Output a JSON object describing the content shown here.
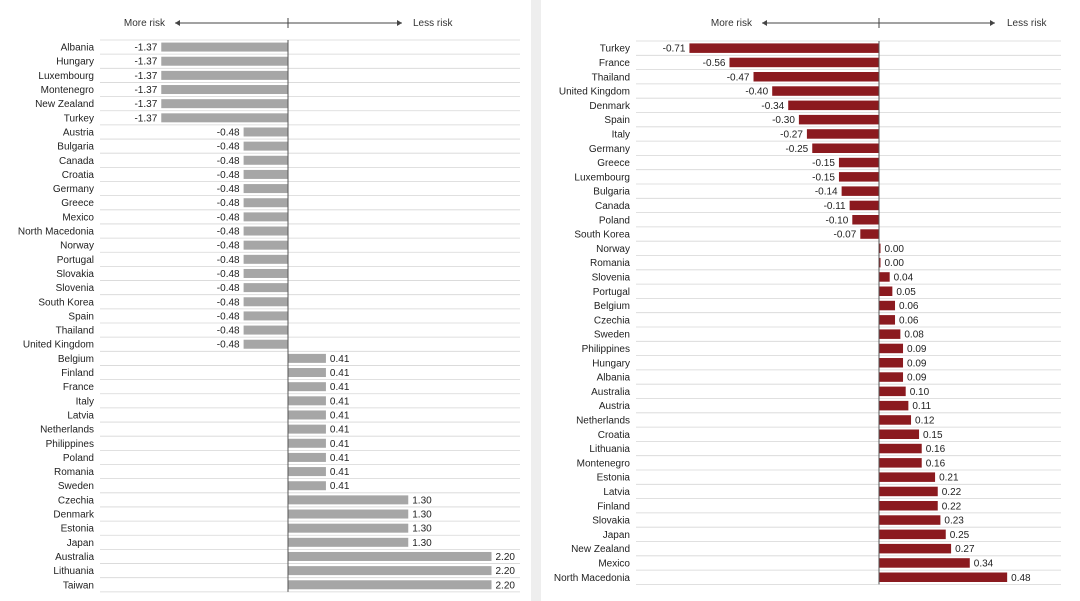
{
  "chart_data": [
    {
      "type": "bar",
      "orientation": "horizontal",
      "header": {
        "left": "More risk",
        "right": "Less risk"
      },
      "bar_color": "#a6a6a6",
      "xlim": [
        -1.37,
        2.2
      ],
      "categories": [
        "Albania",
        "Hungary",
        "Luxembourg",
        "Montenegro",
        "New Zealand",
        "Turkey",
        "Austria",
        "Bulgaria",
        "Canada",
        "Croatia",
        "Germany",
        "Greece",
        "Mexico",
        "North Macedonia",
        "Norway",
        "Portugal",
        "Slovakia",
        "Slovenia",
        "South Korea",
        "Spain",
        "Thailand",
        "United Kingdom",
        "Belgium",
        "Finland",
        "France",
        "Italy",
        "Latvia",
        "Netherlands",
        "Philippines",
        "Poland",
        "Romania",
        "Sweden",
        "Czechia",
        "Denmark",
        "Estonia",
        "Japan",
        "Australia",
        "Lithuania",
        "Taiwan"
      ],
      "values": [
        -1.37,
        -1.37,
        -1.37,
        -1.37,
        -1.37,
        -1.37,
        -0.48,
        -0.48,
        -0.48,
        -0.48,
        -0.48,
        -0.48,
        -0.48,
        -0.48,
        -0.48,
        -0.48,
        -0.48,
        -0.48,
        -0.48,
        -0.48,
        -0.48,
        -0.48,
        0.41,
        0.41,
        0.41,
        0.41,
        0.41,
        0.41,
        0.41,
        0.41,
        0.41,
        0.41,
        1.3,
        1.3,
        1.3,
        1.3,
        2.2,
        2.2,
        2.2
      ],
      "labels": [
        "-1.37",
        "-1.37",
        "-1.37",
        "-1.37",
        "-1.37",
        "-1.37",
        "-0.48",
        "-0.48",
        "-0.48",
        "-0.48",
        "-0.48",
        "-0.48",
        "-0.48",
        "-0.48",
        "-0.48",
        "-0.48",
        "-0.48",
        "-0.48",
        "-0.48",
        "-0.48",
        "-0.48",
        "-0.48",
        "0.41",
        "0.41",
        "0.41",
        "0.41",
        "0.41",
        "0.41",
        "0.41",
        "0.41",
        "0.41",
        "0.41",
        "1.30",
        "1.30",
        "1.30",
        "1.30",
        "2.20",
        "2.20",
        "2.20"
      ]
    },
    {
      "type": "bar",
      "orientation": "horizontal",
      "header": {
        "left": "More risk",
        "right": "Less risk"
      },
      "bar_color": "#8b1a1f",
      "xlim": [
        -0.71,
        0.48
      ],
      "categories": [
        "Turkey",
        "France",
        "Thailand",
        "United Kingdom",
        "Denmark",
        "Spain",
        "Italy",
        "Germany",
        "Greece",
        "Luxembourg",
        "Bulgaria",
        "Canada",
        "Poland",
        "South Korea",
        "Norway",
        "Romania",
        "Slovenia",
        "Portugal",
        "Belgium",
        "Czechia",
        "Sweden",
        "Philippines",
        "Hungary",
        "Albania",
        "Australia",
        "Austria",
        "Netherlands",
        "Croatia",
        "Lithuania",
        "Montenegro",
        "Estonia",
        "Latvia",
        "Finland",
        "Slovakia",
        "Japan",
        "New Zealand",
        "Mexico",
        "North Macedonia"
      ],
      "values": [
        -0.71,
        -0.56,
        -0.47,
        -0.4,
        -0.34,
        -0.3,
        -0.27,
        -0.25,
        -0.15,
        -0.15,
        -0.14,
        -0.11,
        -0.1,
        -0.07,
        0.0,
        0.0,
        0.04,
        0.05,
        0.06,
        0.06,
        0.08,
        0.09,
        0.09,
        0.09,
        0.1,
        0.11,
        0.12,
        0.15,
        0.16,
        0.16,
        0.21,
        0.22,
        0.22,
        0.23,
        0.25,
        0.27,
        0.34,
        0.48
      ],
      "labels": [
        "-0.71",
        "-0.56",
        "-0.47",
        "-0.40",
        "-0.34",
        "-0.30",
        "-0.27",
        "-0.25",
        "-0.15",
        "-0.15",
        "-0.14",
        "-0.11",
        "-0.10",
        "-0.07",
        "0.00",
        "0.00",
        "0.04",
        "0.05",
        "0.06",
        "0.06",
        "0.08",
        "0.09",
        "0.09",
        "0.09",
        "0.10",
        "0.11",
        "0.12",
        "0.15",
        "0.16",
        "0.16",
        "0.21",
        "0.22",
        "0.22",
        "0.23",
        "0.25",
        "0.27",
        "0.34",
        "0.48"
      ]
    }
  ]
}
